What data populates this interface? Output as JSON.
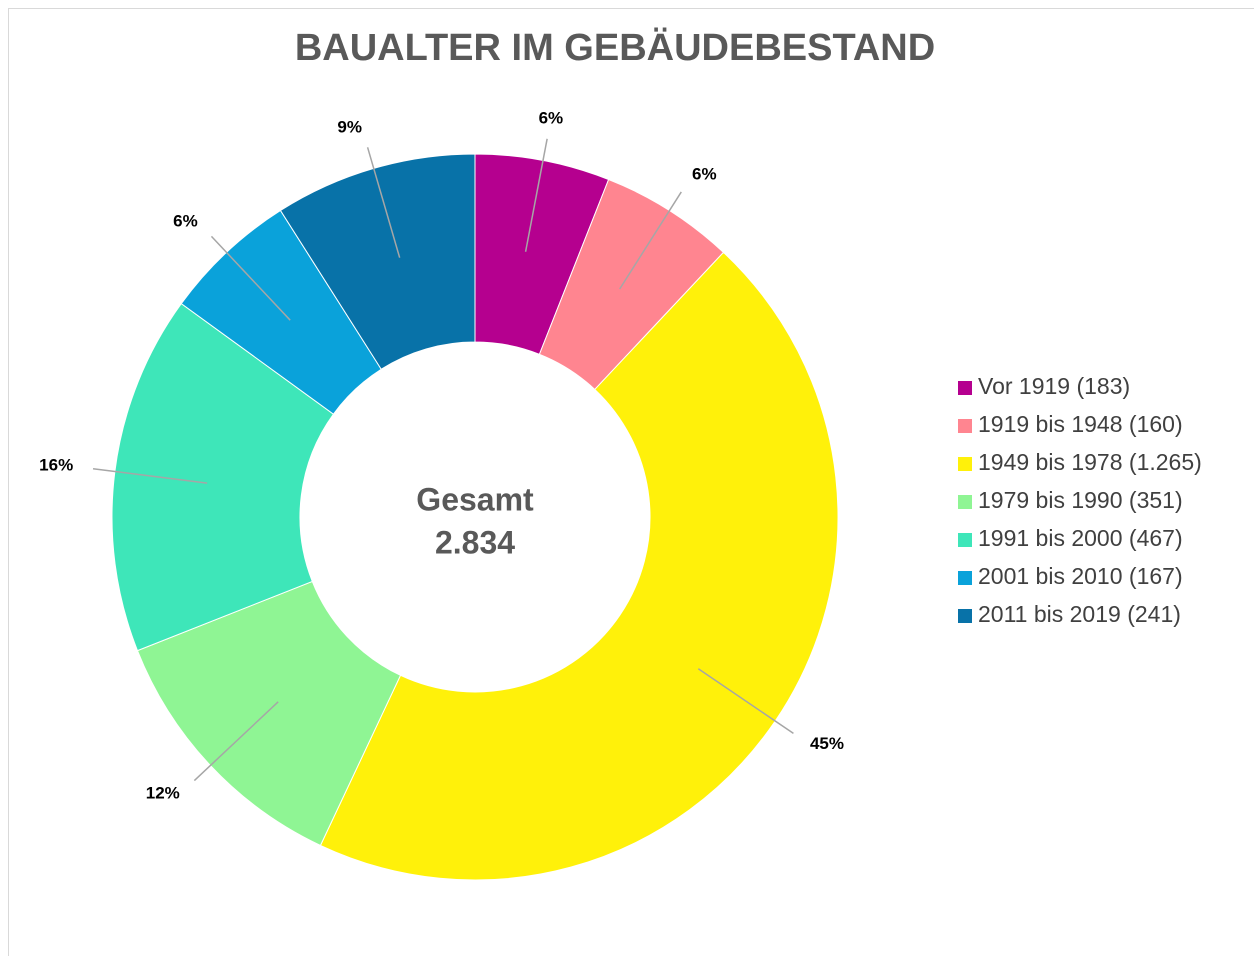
{
  "chart_data": {
    "type": "donut",
    "title": "BAUALTER IM GEBÄUDEBESTAND",
    "center_label": "Gesamt",
    "center_value": "2.834",
    "categories": [
      "Vor 1919 (183)",
      "1919 bis 1948 (160)",
      "1949 bis 1978 (1.265)",
      "1979 bis 1990 (351)",
      "1991 bis 2000 (467)",
      "2001 bis 2010 (167)",
      "2011 bis 2019 (241)"
    ],
    "values": [
      6,
      6,
      45,
      12,
      16,
      6,
      9
    ],
    "value_labels": [
      "6%",
      "6%",
      "45%",
      "12%",
      "16%",
      "6%",
      "9%"
    ],
    "colors": [
      "#b5008f",
      "#ff8590",
      "#fff10a",
      "#8ff594",
      "#3ee6b9",
      "#0aa2da",
      "#0872a8"
    ],
    "legend": "right"
  }
}
